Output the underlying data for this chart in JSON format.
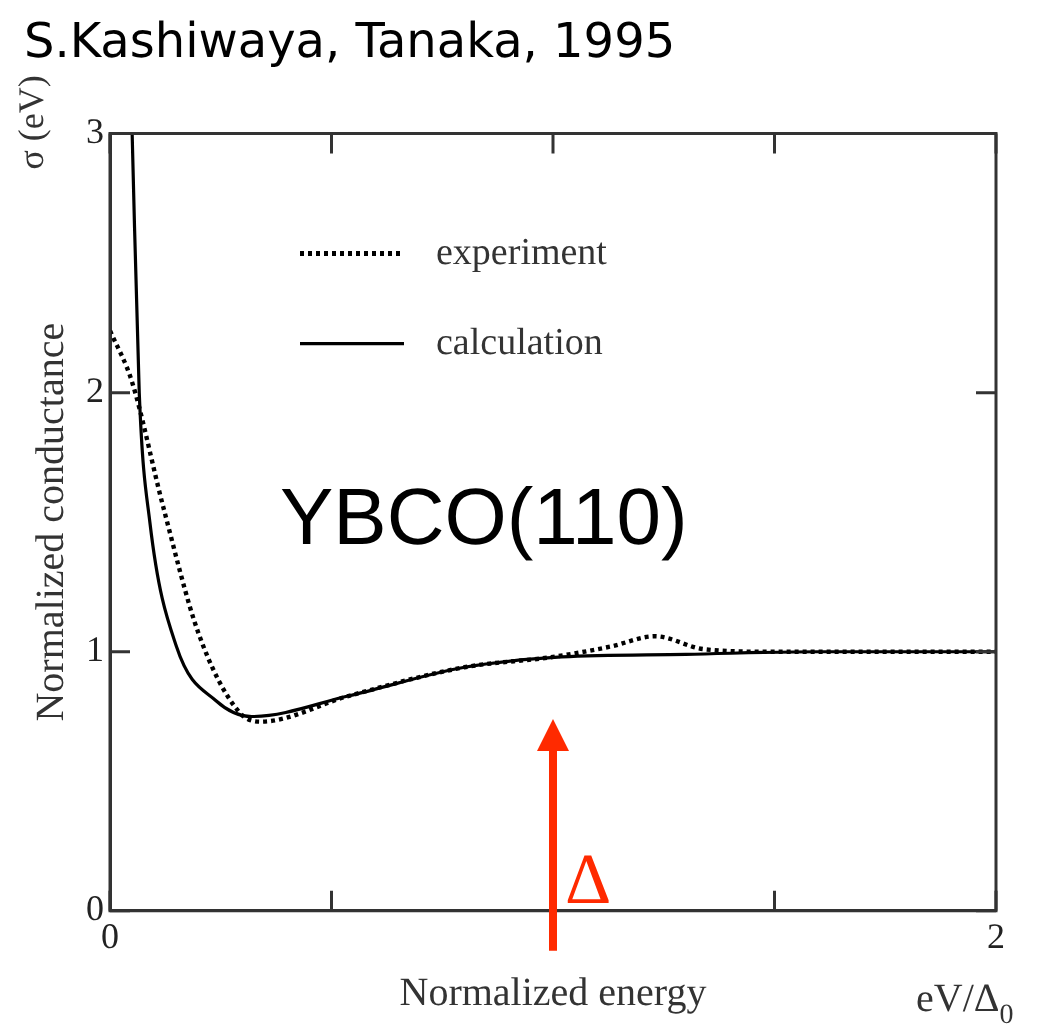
{
  "chart_data": {
    "type": "line",
    "title": "S.Kashiwaya, Tanaka, 1995",
    "xlabel": "Normalized energy",
    "ylabel": "Normalized conductance",
    "annotations": [
      "σ (eV)",
      "eV/Δ$_{0}$",
      "YBCO(110)",
      "Δ"
    ],
    "series": [
      {
        "name": "experiment",
        "color": "#000000",
        "line_style": "dotted",
        "x": [
          0,
          0.05,
          0.12,
          0.2,
          0.29,
          0.34,
          0.54,
          0.8,
          1.0,
          1.13,
          1.23,
          1.34,
          1.5,
          2.0
        ],
        "values": [
          2.24,
          2.04,
          1.56,
          1.07,
          0.77,
          0.73,
          0.83,
          0.94,
          0.98,
          1.02,
          1.06,
          1.01,
          1.0,
          1.0
        ]
      },
      {
        "name": "calculation",
        "color": "#000000",
        "line_style": "solid",
        "x": [
          0.05,
          0.066,
          0.09,
          0.15,
          0.24,
          0.32,
          0.54,
          0.8,
          1.02,
          1.3,
          1.6,
          2.0
        ],
        "values": [
          3.0,
          2.0,
          1.5,
          1.02,
          0.81,
          0.75,
          0.83,
          0.94,
          0.98,
          0.99,
          1.0,
          1.0
        ]
      }
    ],
    "xlim": [
      0,
      2
    ],
    "xticks": [
      0,
      {
        "value": 0.5,
        "label": null
      },
      {
        "value": 1,
        "label": null
      },
      {
        "value": 1.5,
        "label": null
      },
      2
    ],
    "ylim": [
      0,
      3
    ],
    "yticks": [
      0,
      1,
      2,
      3
    ],
    "grid": false,
    "legend": "top",
    "marker": "none"
  }
}
